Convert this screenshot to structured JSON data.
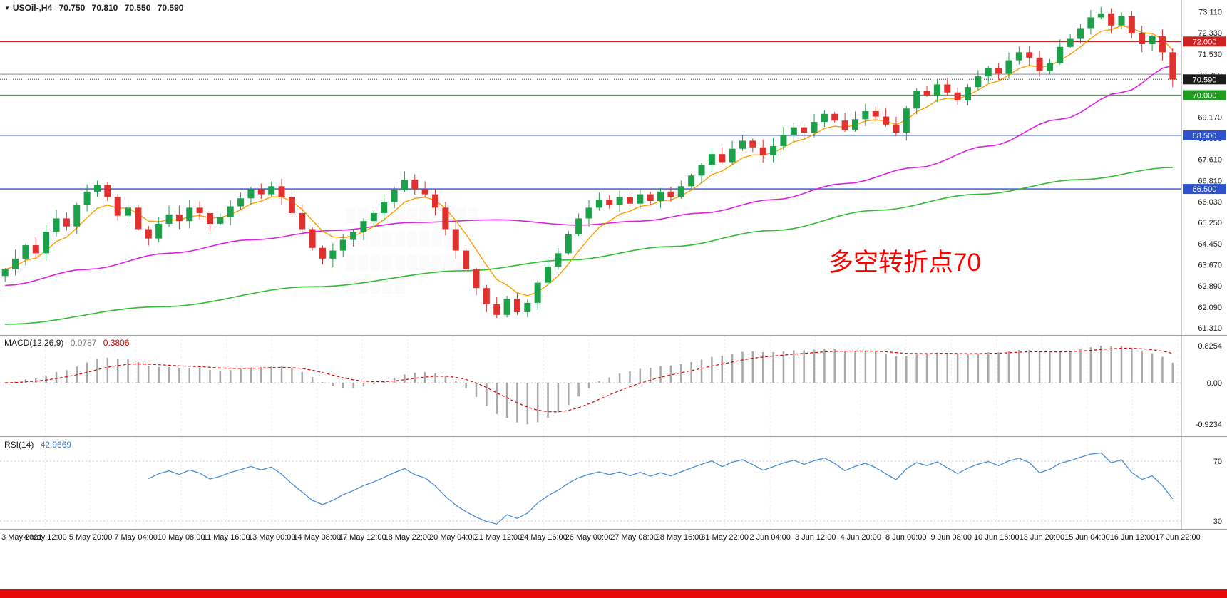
{
  "header": {
    "symbol_label": "USOil-,H4",
    "open": "70.750",
    "high": "70.810",
    "low": "70.550",
    "close": "70.590"
  },
  "macd_header": {
    "label": "MACD(12,26,9)",
    "main_value": "0.0787",
    "signal_value": "0.3806"
  },
  "rsi_header": {
    "label": "RSI(14)",
    "value": "42.9669"
  },
  "annotation": {
    "text": "多空转折点70",
    "color": "#ff0000"
  },
  "watermark": {
    "lines": [
      "▒▒▒▒▒▒▒▒▒▒▒",
      "▒▒▒▒▒▒▒▒▒",
      "▒▒▒▒▒▒▒▒▒▒",
      "▒▒▒▒▒"
    ]
  },
  "footer_bar_color": "#e60a0a",
  "colors": {
    "up": "#1ca049",
    "down": "#e0312e",
    "ma_fast": "#ff9d00",
    "ma_mid": "#e020e0",
    "ma_slow": "#33bb33",
    "macd_hist": "#a8a8a8",
    "macd_signal": "#dd0000",
    "rsi": "#4a8fd4",
    "axis_text": "#222222",
    "separator": "#9e9e9e",
    "grid": "#ececec"
  },
  "chart_data": {
    "type": "candlestick",
    "symbol": "USOil",
    "timeframe": "H4",
    "current_ohlc": {
      "open": 70.75,
      "high": 70.81,
      "low": 70.55,
      "close": 70.59
    },
    "price_axis": {
      "min": 61.05,
      "max": 73.55,
      "ticks": [
        73.11,
        72.33,
        71.53,
        70.75,
        69.17,
        68.39,
        67.61,
        66.81,
        66.03,
        65.25,
        64.45,
        63.67,
        62.89,
        62.09,
        61.31
      ]
    },
    "hlines": [
      {
        "price": 72.0,
        "color": "#cc0000",
        "badge": "72.000",
        "badge_bg": "#cc2222",
        "dotted": false
      },
      {
        "price": 70.78,
        "color": "#9aa0a6",
        "badge": null,
        "badge_bg": null,
        "dotted": false
      },
      {
        "price": 70.0,
        "color": "#2eb82e",
        "badge": "70.000",
        "badge_bg": "#1e9e1e",
        "dotted": false
      },
      {
        "price": 68.5,
        "color": "#2d52cc",
        "badge": "68.500",
        "badge_bg": "#2d52cc",
        "dotted": false
      },
      {
        "price": 66.5,
        "color": "#2d52cc",
        "badge": "66.500",
        "badge_bg": "#2d52cc",
        "dotted": false
      },
      {
        "price": 70.59,
        "color": "#444444",
        "badge": "70.590",
        "badge_bg": "#1b1b1b",
        "dotted": true
      }
    ],
    "closes": [
      63.5,
      63.9,
      64.4,
      64.1,
      64.9,
      65.4,
      65.1,
      65.9,
      66.4,
      66.65,
      66.2,
      65.5,
      65.8,
      65.0,
      64.65,
      65.2,
      65.55,
      65.3,
      65.8,
      65.6,
      65.2,
      65.45,
      65.85,
      66.15,
      66.5,
      66.3,
      66.6,
      66.2,
      65.6,
      65.0,
      64.3,
      63.9,
      64.2,
      64.6,
      64.9,
      65.3,
      65.6,
      66.0,
      66.45,
      66.85,
      66.5,
      66.3,
      65.8,
      65.0,
      64.2,
      63.5,
      62.8,
      62.2,
      61.8,
      62.4,
      61.9,
      62.25,
      63.0,
      63.6,
      64.1,
      64.8,
      65.4,
      65.8,
      66.1,
      65.9,
      66.2,
      65.95,
      66.3,
      66.05,
      66.4,
      66.2,
      66.6,
      67.0,
      67.4,
      67.8,
      67.5,
      68.0,
      68.3,
      68.05,
      67.75,
      68.1,
      68.5,
      68.8,
      68.6,
      69.0,
      69.3,
      69.05,
      68.7,
      69.1,
      69.4,
      69.2,
      68.9,
      68.6,
      69.5,
      70.15,
      70.0,
      70.4,
      70.1,
      69.8,
      70.3,
      70.7,
      71.0,
      70.8,
      71.3,
      71.6,
      71.4,
      70.9,
      71.2,
      71.8,
      72.1,
      72.5,
      72.9,
      73.05,
      72.6,
      72.95,
      72.3,
      71.9,
      72.2,
      71.6,
      70.59
    ],
    "ma_fast_period": 6,
    "ma_mid_anchors": [
      [
        0,
        62.9
      ],
      [
        8,
        63.5
      ],
      [
        16,
        64.1
      ],
      [
        24,
        64.6
      ],
      [
        32,
        64.95
      ],
      [
        40,
        65.25
      ],
      [
        48,
        65.35
      ],
      [
        56,
        65.15
      ],
      [
        62,
        65.3
      ],
      [
        68,
        65.6
      ],
      [
        75,
        66.1
      ],
      [
        82,
        66.7
      ],
      [
        89,
        67.3
      ],
      [
        96,
        68.1
      ],
      [
        103,
        69.1
      ],
      [
        109,
        70.1
      ],
      [
        114,
        71.1
      ]
    ],
    "ma_slow_anchors": [
      [
        0,
        61.45
      ],
      [
        15,
        62.1
      ],
      [
        30,
        62.85
      ],
      [
        45,
        63.45
      ],
      [
        55,
        63.85
      ],
      [
        65,
        64.35
      ],
      [
        75,
        64.95
      ],
      [
        85,
        65.7
      ],
      [
        95,
        66.3
      ],
      [
        105,
        66.85
      ],
      [
        114,
        67.3
      ]
    ],
    "macd": {
      "params": "12,26,9",
      "current_main": 0.0787,
      "current_signal": 0.3806,
      "axis_labels": [
        "0.8254",
        "0.00",
        "-0.9234"
      ],
      "axis_values": [
        0.8254,
        0,
        -0.9234
      ]
    },
    "rsi": {
      "period": 14,
      "current": 42.9669,
      "levels": [
        70,
        30
      ],
      "level_labels": [
        "70",
        "30"
      ]
    },
    "time_labels": [
      "3 May 2021",
      "4 May 12:00",
      "5 May 20:00",
      "7 May 04:00",
      "10 May 08:00",
      "11 May 16:00",
      "13 May 00:00",
      "14 May 08:00",
      "17 May 12:00",
      "18 May 22:00",
      "20 May 04:00",
      "21 May 12:00",
      "24 May 16:00",
      "26 May 00:00",
      "27 May 08:00",
      "28 May 16:00",
      "31 May 22:00",
      "2 Jun 04:00",
      "3 Jun 12:00",
      "4 Jun 20:00",
      "8 Jun 00:00",
      "9 Jun 08:00",
      "10 Jun 16:00",
      "13 Jun 20:00",
      "15 Jun 04:00",
      "16 Jun 12:00",
      "17 Jun 22:00"
    ]
  }
}
